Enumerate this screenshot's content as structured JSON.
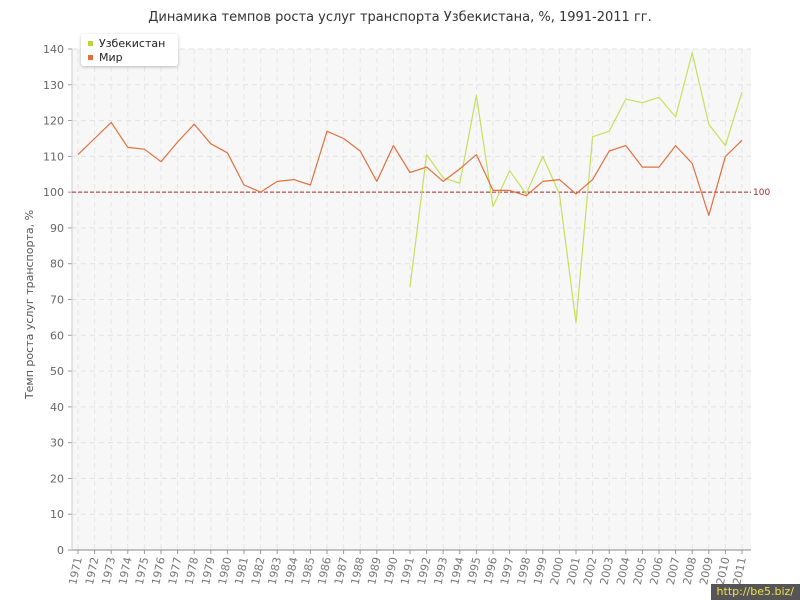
{
  "chart_data": {
    "type": "line",
    "title": "Динамика темпов роста услуг транспорта Узбекистана, %, 1991-2011 гг.",
    "xlabel": "",
    "ylabel": "Темп роста услуг транспорта, %",
    "ylim": [
      0,
      140
    ],
    "yticks": [
      0,
      10,
      20,
      30,
      40,
      50,
      60,
      70,
      80,
      90,
      100,
      110,
      120,
      130,
      140
    ],
    "categories": [
      "1971",
      "1972",
      "1973",
      "1974",
      "1975",
      "1976",
      "1977",
      "1978",
      "1979",
      "1980",
      "1981",
      "1982",
      "1983",
      "1984",
      "1985",
      "1986",
      "1987",
      "1988",
      "1989",
      "1990",
      "1991",
      "1992",
      "1993",
      "1994",
      "1995",
      "1996",
      "1997",
      "1998",
      "1999",
      "2000",
      "2001",
      "2002",
      "2003",
      "2004",
      "2005",
      "2006",
      "2007",
      "2008",
      "2009",
      "2010",
      "2011"
    ],
    "reference_line": {
      "value": 100,
      "label": "100",
      "color": "#a52a2a"
    },
    "grid": true,
    "legend_position": "top-left",
    "series": [
      {
        "name": "Узбекистан",
        "color": "#c5e05c",
        "values": [
          null,
          null,
          null,
          null,
          null,
          null,
          null,
          null,
          null,
          null,
          null,
          null,
          null,
          null,
          null,
          null,
          null,
          null,
          null,
          null,
          73.5,
          110.5,
          104.0,
          102.5,
          127.0,
          96.0,
          106.0,
          99.5,
          110.0,
          99.5,
          63.5,
          115.5,
          117.0,
          126.0,
          125.0,
          126.5,
          121.0,
          139.0,
          119.0,
          113.0,
          128.0
        ]
      },
      {
        "name": "Мир",
        "color": "#e2703d",
        "values": [
          110.5,
          115.0,
          119.5,
          112.5,
          112.0,
          108.5,
          114.0,
          119.0,
          113.5,
          111.0,
          102.0,
          100.0,
          103.0,
          103.5,
          102.0,
          117.0,
          115.0,
          111.5,
          103.0,
          113.0,
          105.5,
          107.0,
          103.0,
          106.5,
          110.5,
          100.5,
          100.5,
          99.0,
          103.0,
          103.5,
          99.5,
          103.5,
          111.5,
          113.0,
          107.0,
          107.0,
          113.0,
          108.0,
          93.5,
          110.0,
          114.5
        ]
      }
    ]
  },
  "watermark": "http://be5.biz/"
}
